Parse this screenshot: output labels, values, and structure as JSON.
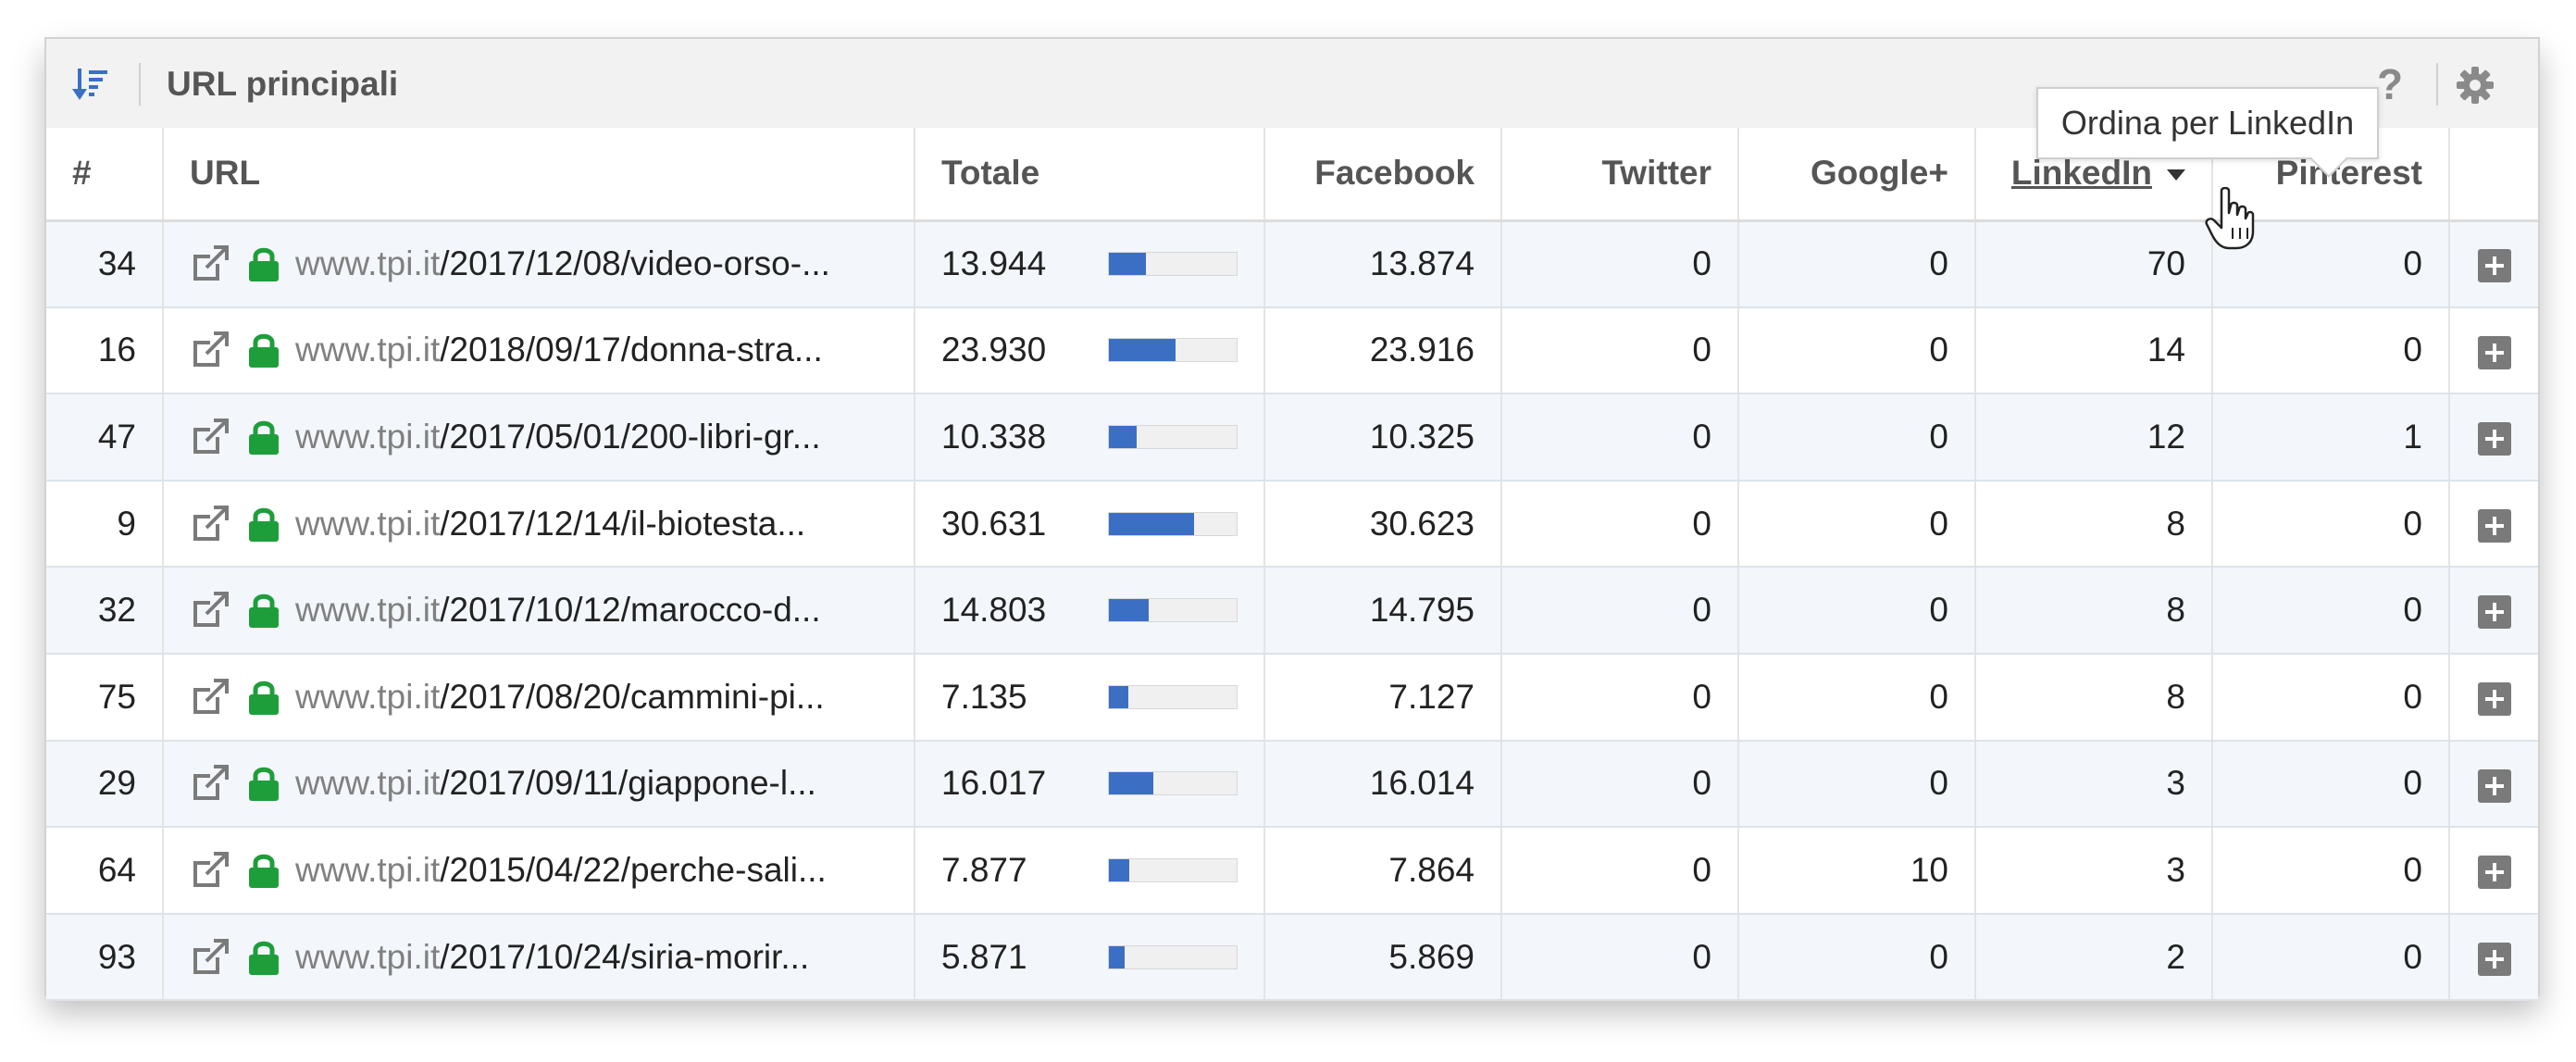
{
  "widget": {
    "title": "URL principali",
    "help_label": "?"
  },
  "tooltip": {
    "text": "Ordina per LinkedIn"
  },
  "columns": {
    "index": "#",
    "url": "URL",
    "totale": "Totale",
    "facebook": "Facebook",
    "twitter": "Twitter",
    "googleplus": "Google+",
    "linkedin": "LinkedIn",
    "pinterest": "Pinterest"
  },
  "rows": [
    {
      "n": "34",
      "domain": "www.tpi.it",
      "path": "/2017/12/08/video-orso-...",
      "totale": "13.944",
      "bar": 0.29,
      "facebook": "13.874",
      "twitter": "0",
      "googleplus": "0",
      "linkedin": "70",
      "pinterest": "0"
    },
    {
      "n": "16",
      "domain": "www.tpi.it",
      "path": "/2018/09/17/donna-stra...",
      "totale": "23.930",
      "bar": 0.52,
      "facebook": "23.916",
      "twitter": "0",
      "googleplus": "0",
      "linkedin": "14",
      "pinterest": "0"
    },
    {
      "n": "47",
      "domain": "www.tpi.it",
      "path": "/2017/05/01/200-libri-gr...",
      "totale": "10.338",
      "bar": 0.22,
      "facebook": "10.325",
      "twitter": "0",
      "googleplus": "0",
      "linkedin": "12",
      "pinterest": "1"
    },
    {
      "n": "9",
      "domain": "www.tpi.it",
      "path": "/2017/12/14/il-biotesta...",
      "totale": "30.631",
      "bar": 0.67,
      "facebook": "30.623",
      "twitter": "0",
      "googleplus": "0",
      "linkedin": "8",
      "pinterest": "0"
    },
    {
      "n": "32",
      "domain": "www.tpi.it",
      "path": "/2017/10/12/marocco-d...",
      "totale": "14.803",
      "bar": 0.31,
      "facebook": "14.795",
      "twitter": "0",
      "googleplus": "0",
      "linkedin": "8",
      "pinterest": "0"
    },
    {
      "n": "75",
      "domain": "www.tpi.it",
      "path": "/2017/08/20/cammini-pi...",
      "totale": "7.135",
      "bar": 0.15,
      "facebook": "7.127",
      "twitter": "0",
      "googleplus": "0",
      "linkedin": "8",
      "pinterest": "0"
    },
    {
      "n": "29",
      "domain": "www.tpi.it",
      "path": "/2017/09/11/giappone-l...",
      "totale": "16.017",
      "bar": 0.35,
      "facebook": "16.014",
      "twitter": "0",
      "googleplus": "0",
      "linkedin": "3",
      "pinterest": "0"
    },
    {
      "n": "64",
      "domain": "www.tpi.it",
      "path": "/2015/04/22/perche-sali...",
      "totale": "7.877",
      "bar": 0.16,
      "facebook": "7.864",
      "twitter": "0",
      "googleplus": "10",
      "linkedin": "3",
      "pinterest": "0"
    },
    {
      "n": "93",
      "domain": "www.tpi.it",
      "path": "/2017/10/24/siria-morir...",
      "totale": "5.871",
      "bar": 0.12,
      "facebook": "5.869",
      "twitter": "0",
      "googleplus": "0",
      "linkedin": "2",
      "pinterest": "0"
    }
  ],
  "colors": {
    "bar_fill": "#3b6fc4",
    "lock": "#1e9e3a",
    "sort_icon": "#3b6fc4"
  },
  "icons": {
    "sort": "sort-descending-icon",
    "help": "help-icon",
    "settings": "gear-icon",
    "external": "external-link-icon",
    "lock": "lock-icon",
    "expand": "plus-icon",
    "cursor": "hand-pointer-icon"
  }
}
